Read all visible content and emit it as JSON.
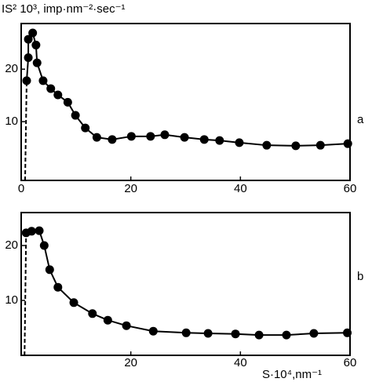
{
  "chart_data": [
    {
      "type": "line",
      "label": "a",
      "y_label": "IS² 10³, imp·nm⁻²·sec⁻¹",
      "xlim": [
        0,
        60
      ],
      "xticks": [
        0,
        20,
        40,
        60
      ],
      "ylim": [
        -1.2,
        28.7
      ],
      "yticks": [
        10,
        20
      ],
      "series": [
        {
          "color": "#000000",
          "x": [
            1,
            1.3,
            1.3,
            2.1,
            2.7,
            2.9,
            4,
            5.4,
            6.7,
            8.5,
            9.9,
            11.7,
            13.8,
            16.6,
            20.1,
            23.6,
            26.2,
            29.8,
            33.4,
            36.2,
            39.8,
            44.8,
            50.1,
            54.6,
            59.6
          ],
          "values": [
            17.8,
            22.2,
            25.7,
            26.9,
            24.6,
            21.2,
            17.8,
            16.3,
            15.1,
            13.7,
            11.2,
            8.8,
            7.0,
            6.6,
            7.2,
            7.2,
            7.5,
            7.0,
            6.6,
            6.4,
            6.0,
            5.5,
            5.4,
            5.5,
            5.8
          ]
        }
      ]
    },
    {
      "type": "line",
      "label": "b",
      "x_label": "S·10⁴,nm⁻¹",
      "xlim": [
        0,
        60
      ],
      "xticks": [
        20,
        40,
        60
      ],
      "ylim": [
        0,
        26
      ],
      "yticks": [
        10,
        20
      ],
      "series": [
        {
          "color": "#000000",
          "x": [
            0.9,
            1.9,
            3.3,
            4.2,
            5.2,
            6.7,
            9.6,
            13.0,
            15.8,
            19.2,
            24.1,
            30.1,
            34.1,
            39.1,
            43.4,
            48.4,
            53.4,
            59.5
          ],
          "values": [
            22.3,
            22.6,
            22.7,
            20.0,
            15.6,
            12.4,
            9.6,
            7.6,
            6.4,
            5.4,
            4.4,
            4.1,
            4.0,
            3.9,
            3.7,
            3.7,
            4.0,
            4.1
          ]
        }
      ]
    }
  ]
}
